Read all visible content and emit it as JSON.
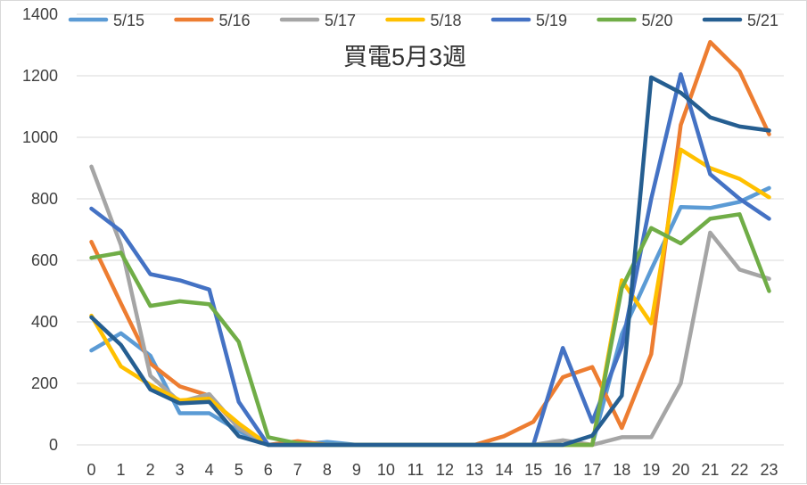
{
  "chart_data": {
    "type": "line",
    "title": "買電5月3週",
    "xlabel": "",
    "ylabel": "",
    "x": [
      0,
      1,
      2,
      3,
      4,
      5,
      6,
      7,
      8,
      9,
      10,
      11,
      12,
      13,
      14,
      15,
      16,
      17,
      18,
      19,
      20,
      21,
      22,
      23
    ],
    "ylim": [
      0,
      1400
    ],
    "yticks": [
      0,
      200,
      400,
      600,
      800,
      1000,
      1200,
      1400
    ],
    "grid": true,
    "legend_position": "top",
    "series": [
      {
        "name": "5/15",
        "color": "#5b9bd5",
        "values": [
          307,
          363,
          290,
          103,
          103,
          45,
          0,
          0,
          10,
          0,
          0,
          0,
          0,
          0,
          0,
          0,
          0,
          0,
          360,
          570,
          773,
          770,
          790,
          835
        ]
      },
      {
        "name": "5/16",
        "color": "#ed7d31",
        "values": [
          660,
          460,
          265,
          190,
          160,
          55,
          0,
          12,
          0,
          0,
          0,
          0,
          0,
          0,
          28,
          75,
          220,
          253,
          55,
          295,
          1040,
          1310,
          1215,
          1010
        ]
      },
      {
        "name": "5/17",
        "color": "#a5a5a5",
        "values": [
          905,
          650,
          225,
          140,
          165,
          55,
          0,
          0,
          0,
          0,
          0,
          0,
          0,
          0,
          0,
          0,
          15,
          0,
          25,
          25,
          200,
          690,
          570,
          540
        ]
      },
      {
        "name": "5/18",
        "color": "#ffc000",
        "values": [
          420,
          255,
          195,
          145,
          150,
          70,
          0,
          0,
          0,
          0,
          0,
          0,
          0,
          0,
          0,
          0,
          0,
          0,
          535,
          395,
          960,
          900,
          865,
          805
        ]
      },
      {
        "name": "5/19",
        "color": "#4472c4",
        "values": [
          768,
          695,
          555,
          535,
          505,
          140,
          0,
          0,
          0,
          0,
          0,
          0,
          0,
          0,
          0,
          0,
          315,
          75,
          320,
          800,
          1205,
          880,
          800,
          735
        ]
      },
      {
        "name": "5/20",
        "color": "#70ad47",
        "values": [
          608,
          625,
          452,
          467,
          457,
          335,
          25,
          5,
          0,
          0,
          0,
          0,
          0,
          0,
          0,
          0,
          0,
          0,
          510,
          705,
          655,
          735,
          750,
          500
        ]
      },
      {
        "name": "5/21",
        "color": "#255e91",
        "values": [
          415,
          325,
          180,
          135,
          140,
          28,
          0,
          0,
          0,
          0,
          0,
          0,
          0,
          0,
          0,
          0,
          0,
          30,
          160,
          1195,
          1145,
          1065,
          1035,
          1022
        ]
      }
    ]
  }
}
